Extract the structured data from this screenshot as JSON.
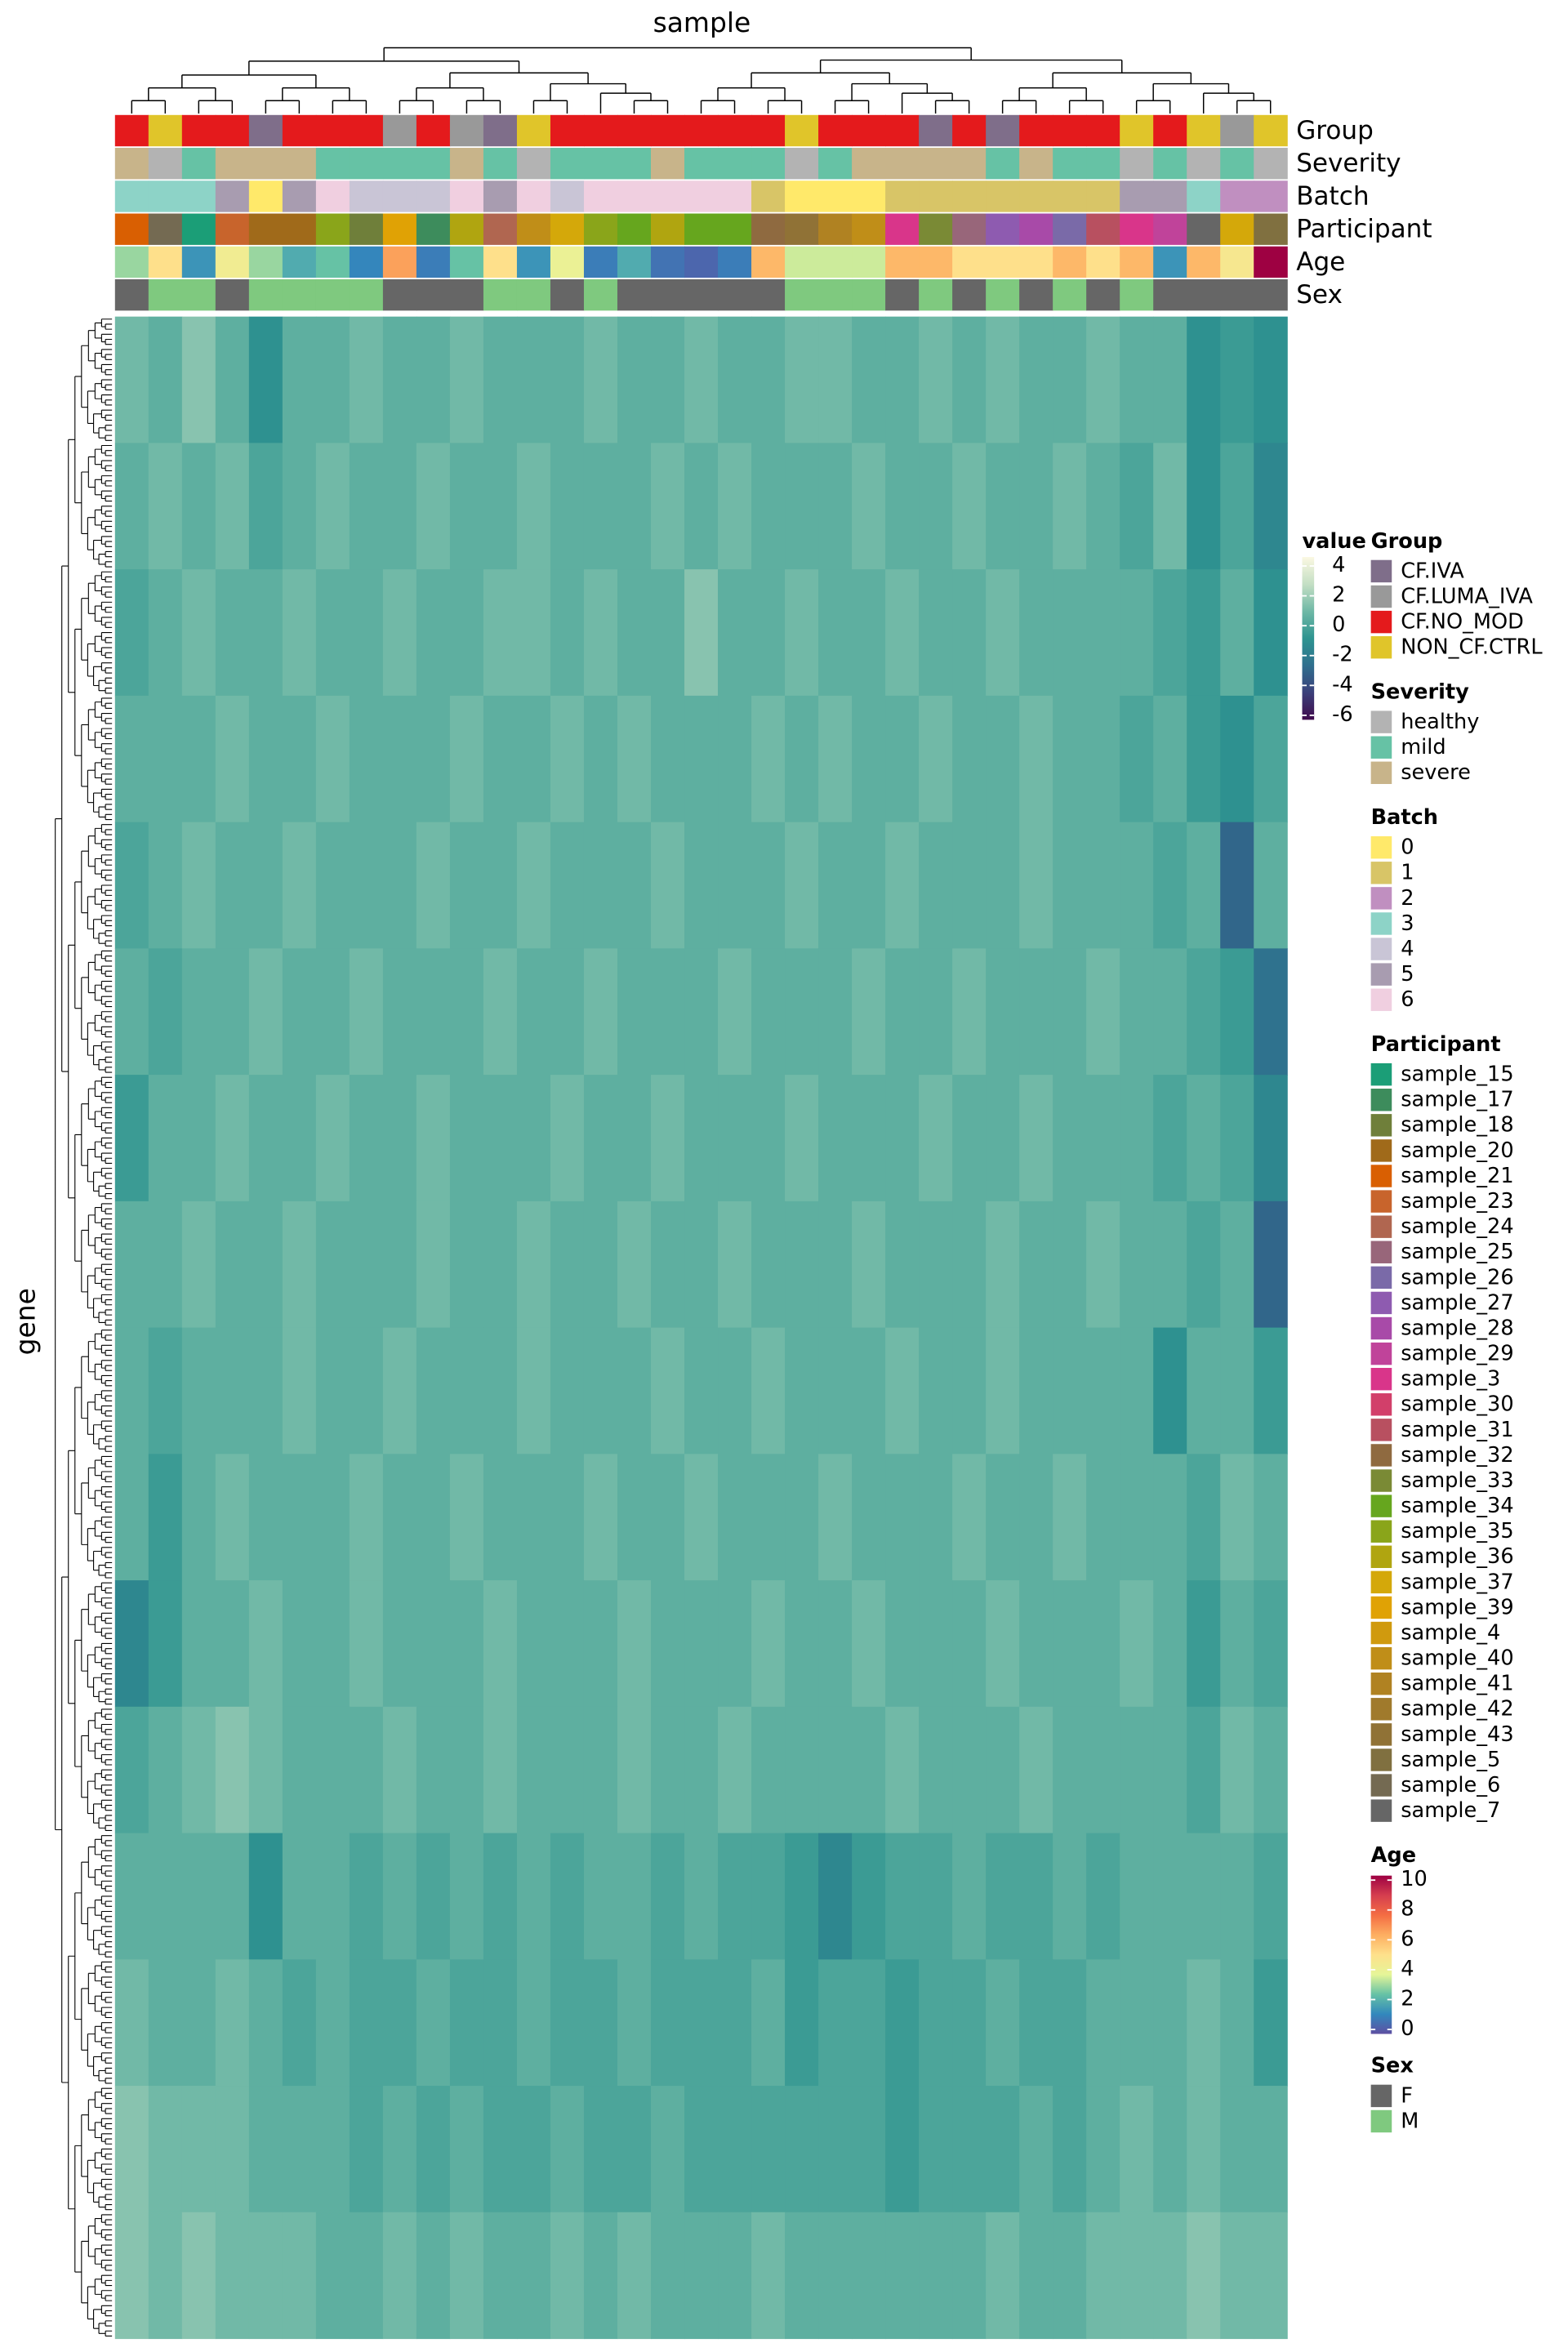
{
  "chart_data": {
    "type": "heatmap",
    "x_label": "sample",
    "y_label": "gene",
    "legend_title": "value",
    "clim": [
      -6.3,
      4.6
    ],
    "cticks": [
      4,
      2,
      0,
      -2,
      -4,
      -6
    ],
    "colors": [
      "#3f0a4c",
      "#3b3f7a",
      "#2f6f8e",
      "#2e9490",
      "#6fb8a6",
      "#c4dfc4",
      "#fbf8e2"
    ],
    "annotations": [
      {
        "name": "Group",
        "levels": [
          "CF.IVA",
          "CF.LUMA_IVA",
          "CF.NO_MOD",
          "NON_CF.CTRL"
        ],
        "colors": [
          "#7f6e8a",
          "#999999",
          "#e41a1c",
          "#e0c52a"
        ],
        "values": [
          "CF.NO_MOD",
          "NON_CF.CTRL",
          "CF.NO_MOD",
          "CF.NO_MOD",
          "CF.IVA",
          "CF.NO_MOD",
          "CF.NO_MOD",
          "CF.NO_MOD",
          "CF.LUMA_IVA",
          "CF.NO_MOD",
          "CF.LUMA_IVA",
          "CF.IVA",
          "NON_CF.CTRL",
          "CF.NO_MOD",
          "CF.NO_MOD",
          "CF.NO_MOD",
          "CF.NO_MOD",
          "CF.NO_MOD",
          "CF.NO_MOD",
          "CF.NO_MOD",
          "NON_CF.CTRL",
          "CF.NO_MOD",
          "CF.NO_MOD",
          "CF.NO_MOD",
          "CF.IVA",
          "CF.NO_MOD",
          "CF.IVA",
          "CF.NO_MOD",
          "CF.NO_MOD",
          "CF.NO_MOD",
          "NON_CF.CTRL",
          "CF.NO_MOD",
          "NON_CF.CTRL",
          "CF.LUMA_IVA",
          "NON_CF.CTRL"
        ]
      },
      {
        "name": "Severity",
        "levels": [
          "healthy",
          "mild",
          "severe"
        ],
        "colors": [
          "#b3b3b3",
          "#66c2a5",
          "#c8b48a"
        ],
        "values": [
          "severe",
          "healthy",
          "mild",
          "severe",
          "severe",
          "severe",
          "mild",
          "mild",
          "mild",
          "mild",
          "severe",
          "mild",
          "healthy",
          "mild",
          "mild",
          "mild",
          "severe",
          "mild",
          "mild",
          "mild",
          "healthy",
          "mild",
          "severe",
          "severe",
          "severe",
          "severe",
          "mild",
          "severe",
          "mild",
          "mild",
          "healthy",
          "mild",
          "healthy",
          "mild",
          "healthy"
        ]
      },
      {
        "name": "Batch",
        "levels": [
          "0",
          "1",
          "2",
          "3",
          "4",
          "5",
          "6"
        ],
        "colors": [
          "#ffe96a",
          "#d8c567",
          "#c08fc0",
          "#8dd3c7",
          "#c9c5d6",
          "#a89cb0",
          "#f0cfe0"
        ],
        "values": [
          "3",
          "3",
          "3",
          "5",
          "0",
          "5",
          "6",
          "4",
          "4",
          "4",
          "6",
          "5",
          "6",
          "4",
          "6",
          "6",
          "6",
          "6",
          "6",
          "1",
          "0",
          "0",
          "0",
          "1",
          "1",
          "1",
          "1",
          "1",
          "1",
          "1",
          "5",
          "5",
          "3",
          "2",
          "2"
        ]
      },
      {
        "name": "Participant",
        "levels": [
          "sample_15",
          "sample_17",
          "sample_18",
          "sample_20",
          "sample_21",
          "sample_23",
          "sample_24",
          "sample_25",
          "sample_26",
          "sample_27",
          "sample_28",
          "sample_29",
          "sample_3",
          "sample_30",
          "sample_31",
          "sample_32",
          "sample_33",
          "sample_34",
          "sample_35",
          "sample_36",
          "sample_37",
          "sample_39",
          "sample_4",
          "sample_40",
          "sample_41",
          "sample_42",
          "sample_43",
          "sample_5",
          "sample_6",
          "sample_7"
        ],
        "colors": [
          "#1b9e77",
          "#3d8c5c",
          "#6f7f3a",
          "#a06a1a",
          "#d95f02",
          "#c8642c",
          "#b06650",
          "#98667a",
          "#7a6aa8",
          "#8e5bb0",
          "#a84aa8",
          "#c0439a",
          "#d9358a",
          "#d23f6a",
          "#b85060",
          "#8f6a40",
          "#7a8a35",
          "#66a61e",
          "#8aa51a",
          "#b0a510",
          "#d4a80a",
          "#e0a205",
          "#d09a0e",
          "#c08e18",
          "#b08222",
          "#a07a2c",
          "#907236",
          "#807040",
          "#746a52",
          "#666666"
        ],
        "values": [
          "sample_21",
          "sample_6",
          "sample_15",
          "sample_23",
          "sample_20",
          "sample_20",
          "sample_35",
          "sample_18",
          "sample_39",
          "sample_17",
          "sample_36",
          "sample_24",
          "sample_40",
          "sample_37",
          "sample_35",
          "sample_34",
          "sample_36",
          "sample_34",
          "sample_34",
          "sample_32",
          "sample_43",
          "sample_41",
          "sample_40",
          "sample_3",
          "sample_33",
          "sample_25",
          "sample_27",
          "sample_28",
          "sample_26",
          "sample_31",
          "sample_3",
          "sample_29",
          "sample_7",
          "sample_37",
          "sample_5"
        ]
      },
      {
        "name": "Age",
        "lim": [
          0,
          10
        ],
        "ticks": [
          10,
          8,
          6,
          4,
          2,
          0
        ],
        "colors": [
          "#5e4fa2",
          "#3288bd",
          "#66c2a5",
          "#e6f598",
          "#fee08b",
          "#fdae61",
          "#f46d43",
          "#d53e4f",
          "#9e0142"
        ],
        "values": [
          3,
          5,
          1.5,
          4.3,
          3,
          2,
          2.5,
          1.2,
          6.5,
          1,
          2.5,
          5,
          1.5,
          4,
          1,
          2,
          0.8,
          0.5,
          1,
          6,
          3.5,
          3.5,
          3.5,
          6,
          6,
          5,
          5,
          5,
          6,
          5,
          6,
          1.5,
          6,
          4.6,
          10
        ]
      },
      {
        "name": "Sex",
        "levels": [
          "F",
          "M"
        ],
        "colors": [
          "#666666",
          "#7fc97f"
        ],
        "values": [
          "F",
          "M",
          "M",
          "F",
          "M",
          "M",
          "M",
          "M",
          "F",
          "F",
          "F",
          "M",
          "M",
          "F",
          "M",
          "F",
          "F",
          "F",
          "F",
          "F",
          "M",
          "M",
          "M",
          "F",
          "M",
          "F",
          "M",
          "F",
          "M",
          "F",
          "M",
          "F",
          "F",
          "F",
          "F"
        ]
      }
    ],
    "values": [
      [
        1,
        0.5,
        1.5,
        0.5,
        -1,
        0.5,
        0.5,
        1,
        0.5,
        0.5,
        1,
        0.5,
        0.5,
        0.5,
        1,
        0.5,
        0.5,
        1,
        0.5,
        0.5,
        1,
        1,
        0.5,
        0.5,
        1,
        0.5,
        1,
        0.5,
        0.5,
        1,
        0.5,
        0.5,
        -1,
        -0.5,
        -1
      ],
      [
        0.5,
        1,
        0.5,
        1,
        0,
        0.5,
        1,
        0.5,
        0.5,
        1,
        0.5,
        0.5,
        1,
        0.5,
        0.5,
        0.5,
        1,
        0.5,
        1,
        0.5,
        0.5,
        0.5,
        1,
        0.5,
        0.5,
        1,
        0.5,
        0.5,
        1,
        0.5,
        0,
        1,
        -1,
        0,
        -1.5
      ],
      [
        0,
        0.5,
        1,
        0.5,
        0.5,
        1,
        0.5,
        0.5,
        1,
        0.5,
        0.5,
        1,
        1,
        0.5,
        1,
        0.5,
        0.5,
        1.5,
        0.5,
        0.5,
        1,
        0.5,
        0.5,
        1,
        0.5,
        0.5,
        1,
        0.5,
        0.5,
        0.5,
        0.5,
        0,
        -0.5,
        0.5,
        -1
      ],
      [
        0.5,
        0.5,
        0.5,
        1,
        0.5,
        0.5,
        1,
        0.5,
        0.5,
        0.5,
        1,
        0.5,
        0.5,
        1,
        0.5,
        1,
        0.5,
        0.5,
        0.5,
        1,
        0.5,
        1,
        0.5,
        0.5,
        1,
        0.5,
        0.5,
        1,
        0.5,
        0.5,
        0,
        0.5,
        -0.5,
        -1,
        0
      ],
      [
        0,
        0.5,
        1,
        0.5,
        0.5,
        1,
        0.5,
        0.5,
        0.5,
        1,
        0.5,
        0.5,
        1,
        0.5,
        0.5,
        0.5,
        1,
        0.5,
        0.5,
        0.5,
        1,
        0.5,
        0.5,
        1,
        0.5,
        0.5,
        0.5,
        1,
        0.5,
        0.5,
        0.5,
        0,
        0.5,
        -3,
        0.5
      ],
      [
        0.5,
        0,
        0.5,
        0.5,
        1,
        0.5,
        0.5,
        1,
        0.5,
        0.5,
        0.5,
        1,
        0.5,
        0.5,
        1,
        0.5,
        0.5,
        0.5,
        1,
        0.5,
        0.5,
        0.5,
        1,
        0.5,
        0.5,
        1,
        0.5,
        0.5,
        0.5,
        1,
        0.5,
        0.5,
        0,
        -0.5,
        -2.5
      ],
      [
        -0.5,
        0.5,
        0.5,
        1,
        0.5,
        0.5,
        1,
        0.5,
        0.5,
        1,
        0.5,
        0.5,
        0.5,
        1,
        0.5,
        0.5,
        1,
        0.5,
        0.5,
        0.5,
        1,
        0.5,
        0.5,
        0.5,
        1,
        0.5,
        0.5,
        1,
        0.5,
        0.5,
        0.5,
        0,
        0.5,
        0,
        -1.5
      ],
      [
        0.5,
        0.5,
        1,
        0.5,
        0.5,
        1,
        0.5,
        0.5,
        0.5,
        1,
        0.5,
        0.5,
        1,
        0.5,
        0.5,
        1,
        0.5,
        0.5,
        1,
        0.5,
        0.5,
        0.5,
        1,
        0.5,
        0.5,
        0.5,
        1,
        0.5,
        0.5,
        1,
        0.5,
        0.5,
        0,
        0.5,
        -3
      ],
      [
        0.5,
        0,
        0.5,
        0.5,
        0.5,
        1,
        0.5,
        0.5,
        1,
        0.5,
        0.5,
        0.5,
        1,
        0.5,
        0.5,
        0.5,
        1,
        0.5,
        0.5,
        1,
        0.5,
        0.5,
        0.5,
        1,
        0.5,
        0.5,
        1,
        0.5,
        0.5,
        0.5,
        0.5,
        -1,
        0.5,
        0.5,
        -0.5
      ],
      [
        0.5,
        -0.5,
        0.5,
        1,
        0.5,
        0.5,
        0.5,
        1,
        0.5,
        0.5,
        1,
        0.5,
        0.5,
        0.5,
        1,
        0.5,
        0.5,
        1,
        0.5,
        0.5,
        0.5,
        1,
        0.5,
        0.5,
        0.5,
        1,
        0.5,
        0.5,
        1,
        0.5,
        0.5,
        0.5,
        0,
        1,
        0.5
      ],
      [
        -1.5,
        -0.5,
        0.5,
        0.5,
        1,
        0.5,
        0.5,
        1,
        0.5,
        0.5,
        0.5,
        1,
        0.5,
        0.5,
        0.5,
        1,
        0.5,
        0.5,
        0.5,
        1,
        0.5,
        0.5,
        1,
        0.5,
        0.5,
        0.5,
        1,
        0.5,
        0.5,
        0.5,
        1,
        0.5,
        -0.5,
        0.5,
        0
      ],
      [
        0,
        0.5,
        1,
        1.5,
        1,
        0.5,
        0.5,
        0.5,
        1,
        0.5,
        0.5,
        1,
        0.5,
        0.5,
        0.5,
        1,
        0.5,
        0.5,
        1,
        0.5,
        0.5,
        0.5,
        0.5,
        1,
        0.5,
        0.5,
        0.5,
        1,
        0.5,
        0.5,
        0.5,
        0.5,
        0,
        1,
        0.5
      ],
      [
        0.5,
        0.5,
        0.5,
        0.5,
        -1,
        0.5,
        0.5,
        0,
        0.5,
        0,
        0.5,
        0,
        0.5,
        0,
        0.5,
        0.5,
        0,
        0.5,
        0,
        0,
        -0.5,
        -1.5,
        -0.5,
        0,
        0,
        0.5,
        0,
        0,
        0.5,
        0,
        0.5,
        0.5,
        0.5,
        0.5,
        0
      ],
      [
        1,
        0.5,
        0.5,
        1,
        0.5,
        0,
        0.5,
        0,
        0,
        0.5,
        0,
        0,
        0.5,
        0,
        0,
        0.5,
        0,
        0,
        0,
        0.5,
        -0.5,
        0,
        0,
        -0.5,
        0,
        0,
        0.5,
        0,
        0,
        0.5,
        0.5,
        0.5,
        1,
        0.5,
        -0.5
      ],
      [
        1.5,
        1,
        1,
        1,
        0.5,
        0.5,
        0.5,
        0,
        0.5,
        0,
        0.5,
        0,
        0,
        0.5,
        0,
        0,
        0.5,
        0,
        0,
        0,
        0,
        0,
        0,
        -0.5,
        0,
        0,
        0,
        0.5,
        0,
        0.5,
        1,
        0.5,
        1,
        0.5,
        0.5
      ],
      [
        1.5,
        1,
        1.5,
        1,
        1,
        1,
        0.5,
        0.5,
        1,
        0.5,
        1,
        0.5,
        0.5,
        1,
        0.5,
        1,
        0.5,
        0.5,
        0.5,
        1,
        0.5,
        0.5,
        0.5,
        0.5,
        0.5,
        0.5,
        1,
        0.5,
        0.5,
        1,
        1,
        1,
        1.5,
        1,
        1
      ]
    ]
  }
}
